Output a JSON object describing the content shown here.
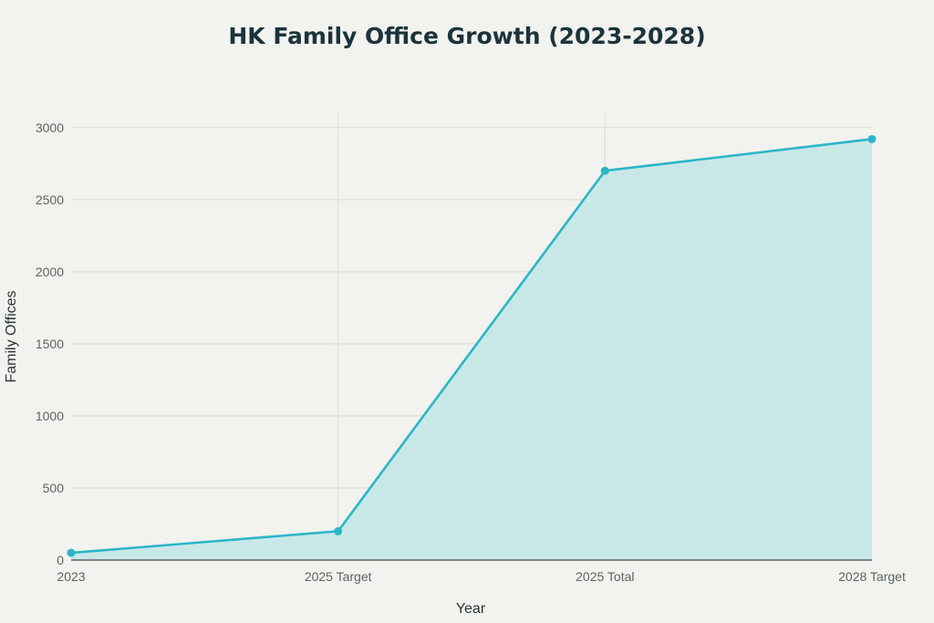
{
  "chart_data": {
    "type": "area",
    "title": "HK Family Office Growth (2023-2028)",
    "xlabel": "Year",
    "ylabel": "Family Offices",
    "categories": [
      "2023",
      "2025 Target",
      "2025 Total",
      "2028 Target"
    ],
    "series": [
      {
        "values": [
          50,
          200,
          2700,
          2920
        ]
      }
    ],
    "ylim": [
      0,
      3100
    ],
    "yticks": [
      0,
      500,
      1000,
      1500,
      2000,
      2500,
      3000
    ],
    "grid": true,
    "legend": "none",
    "colors": {
      "line": "#2cb5c7",
      "fill": "#c8e8e8",
      "grid": "#d9dad6",
      "axis": "#44494b",
      "background": "#f2f2ee"
    }
  }
}
